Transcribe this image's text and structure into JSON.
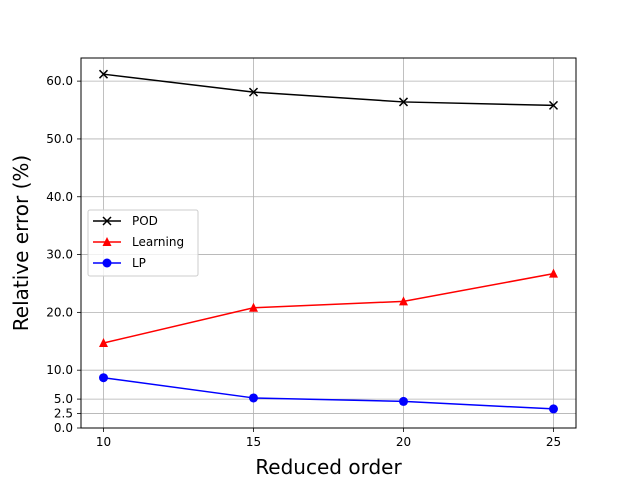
{
  "chart_data": {
    "type": "line",
    "title": "",
    "xlabel": "Reduced order",
    "ylabel": "Relative error (%)",
    "x": [
      10,
      15,
      20,
      25
    ],
    "xticks": [
      "10",
      "15",
      "20",
      "25"
    ],
    "yticks": [
      0.0,
      2.5,
      5.0,
      10.0,
      20.0,
      30.0,
      40.0,
      50.0,
      60.0
    ],
    "ytick_labels": [
      "0.0",
      "2.5",
      "5.0",
      "10.0",
      "20.0",
      "30.0",
      "40.0",
      "50.0",
      "60.0"
    ],
    "xlim": [
      9.25,
      25.75
    ],
    "ylim": [
      0,
      64
    ],
    "grid": true,
    "legend_position": "center-left",
    "series": [
      {
        "name": "POD",
        "color": "#000000",
        "marker": "x",
        "values": [
          61.2,
          58.1,
          56.4,
          55.8
        ]
      },
      {
        "name": "Learning",
        "color": "#ff0000",
        "marker": "triangle",
        "values": [
          14.7,
          20.8,
          21.9,
          26.7
        ]
      },
      {
        "name": "LP",
        "color": "#0000ff",
        "marker": "circle",
        "values": [
          8.7,
          5.2,
          4.6,
          3.3
        ]
      }
    ]
  }
}
